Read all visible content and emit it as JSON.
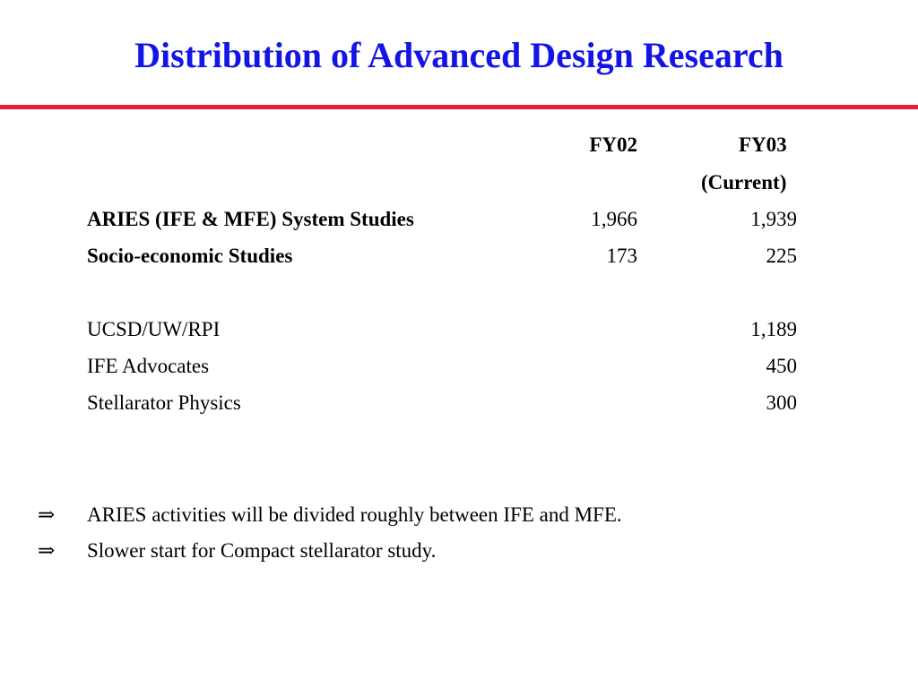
{
  "slide": {
    "title": "Distribution of Advanced Design Research"
  },
  "table": {
    "headers": {
      "fy02": "FY02",
      "fy03": "FY03",
      "fy03_sub": "(Current)"
    },
    "rows": [
      {
        "label": "ARIES (IFE & MFE) System Studies",
        "fy02": "1,966",
        "fy03": "1,939",
        "bold": true
      },
      {
        "label": "Socio-economic Studies",
        "fy02": "173",
        "fy03": "225",
        "bold": true
      },
      {
        "label": "UCSD/UW/RPI",
        "fy02": "",
        "fy03": "1,189",
        "bold": false
      },
      {
        "label": "IFE Advocates",
        "fy02": "",
        "fy03": "450",
        "bold": false
      },
      {
        "label": "Stellarator Physics",
        "fy02": "",
        "fy03": "300",
        "bold": false
      }
    ]
  },
  "bullets": [
    {
      "marker": "⇒",
      "text": "ARIES activities will be divided roughly between IFE and MFE."
    },
    {
      "marker": "⇒",
      "text": "Slower start for Compact stellarator study."
    }
  ],
  "colors": {
    "title": "#1414e6",
    "rule": "#e61e3c"
  }
}
